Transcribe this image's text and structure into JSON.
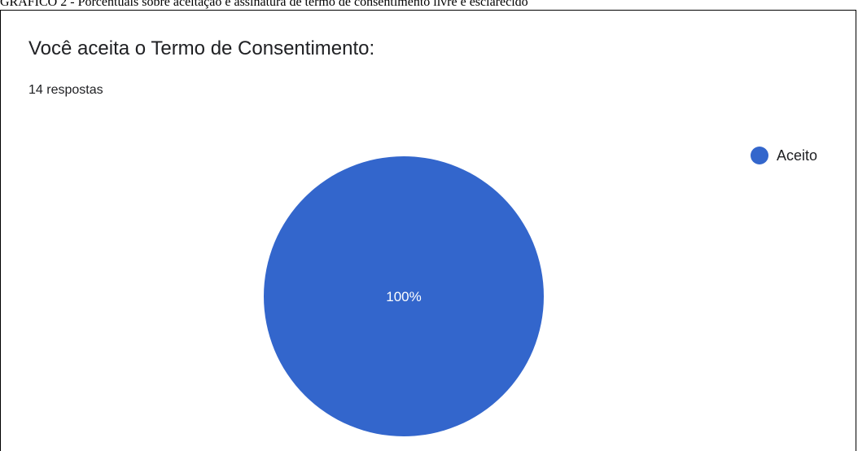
{
  "caption": "GRÁFICO 2 - Porcentuais sobre aceitação e assinatura de termo de consentimento livre e esclarecido",
  "question": {
    "title": "Você aceita o Termo de Consentimento:",
    "responses": "14 respostas"
  },
  "colors": {
    "slice_aceito": "#3366cc"
  },
  "chart_data": {
    "type": "pie",
    "categories": [
      "Aceito"
    ],
    "values": [
      100
    ],
    "labels": [
      "100%"
    ],
    "legend_position": "top-right"
  }
}
